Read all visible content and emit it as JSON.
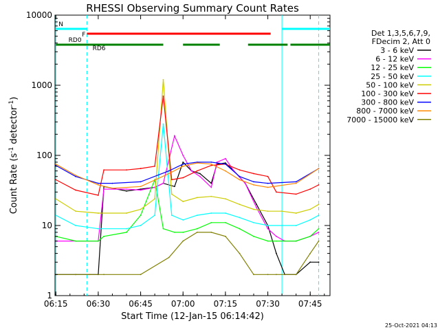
{
  "chart_data": {
    "type": "line",
    "title": "RHESSI Observing Summary Count Rates",
    "xlabel": "Start Time (12-Jan-15 06:14:42)",
    "ylabel": "Count Rate (s⁻¹ detector⁻¹)",
    "ylabel_main": "Count Rate (s",
    "ylabel_sup1": "-1",
    "ylabel_mid": " detector",
    "ylabel_sup2": "-1",
    "ylabel_end": ")",
    "y_scale": "log",
    "ylim": [
      1,
      10000
    ],
    "xlim": [
      "06:14:42",
      "07:52:00"
    ],
    "x_ticks": [
      "06:15",
      "06:30",
      "06:45",
      "07:00",
      "07:15",
      "07:30",
      "07:45"
    ],
    "y_ticks": [
      "1",
      "10",
      "100",
      "1000",
      "10000"
    ],
    "legend_header": [
      "Det 1,3,5,6,7,9,",
      "FDecim 2, Att 0"
    ],
    "legend_position": "right",
    "date_stamp": "25-Oct-2021 04:13",
    "series": [
      {
        "name": "3 - 6 keV",
        "color": "#000000",
        "x": [
          "06:15",
          "06:22",
          "06:30",
          "06:32",
          "06:40",
          "06:45",
          "06:50",
          "06:53",
          "06:57",
          "07:00",
          "07:03",
          "07:06",
          "07:10",
          "07:12",
          "07:15",
          "07:18",
          "07:22",
          "07:26",
          "07:30",
          "07:33",
          "07:36",
          "07:40",
          "07:45",
          "07:48"
        ],
        "values": [
          2,
          2,
          2,
          36,
          31,
          33,
          35,
          40,
          36,
          80,
          60,
          55,
          40,
          75,
          78,
          60,
          40,
          20,
          10,
          4,
          2,
          2,
          3,
          3
        ]
      },
      {
        "name": "6 - 12 keV",
        "color": "#ff00ff",
        "x": [
          "06:15",
          "06:22",
          "06:30",
          "06:32",
          "06:40",
          "06:45",
          "06:50",
          "06:53",
          "06:57",
          "07:00",
          "07:03",
          "07:06",
          "07:10",
          "07:12",
          "07:15",
          "07:18",
          "07:22",
          "07:26",
          "07:30",
          "07:33",
          "07:36",
          "07:40",
          "07:45",
          "07:48"
        ],
        "values": [
          6,
          6,
          6,
          33,
          33,
          32,
          35,
          40,
          190,
          100,
          60,
          50,
          35,
          80,
          90,
          60,
          40,
          18,
          9,
          7,
          6,
          6,
          7,
          8
        ]
      },
      {
        "name": "12 - 25 keV",
        "color": "#00ff00",
        "x": [
          "06:15",
          "06:22",
          "06:30",
          "06:32",
          "06:40",
          "06:45",
          "06:50",
          "06:53",
          "06:57",
          "07:00",
          "07:05",
          "07:10",
          "07:15",
          "07:20",
          "07:25",
          "07:30",
          "07:33",
          "07:40",
          "07:45",
          "07:48"
        ],
        "values": [
          7,
          6,
          6,
          7,
          8,
          14,
          45,
          9,
          8,
          8,
          9,
          11,
          11,
          9,
          7,
          6,
          6,
          6,
          7,
          9
        ]
      },
      {
        "name": "25 - 50 keV",
        "color": "#00ffff",
        "x": [
          "06:15",
          "06:22",
          "06:30",
          "06:40",
          "06:45",
          "06:50",
          "06:53",
          "06:56",
          "07:00",
          "07:05",
          "07:10",
          "07:15",
          "07:20",
          "07:25",
          "07:30",
          "07:35",
          "07:40",
          "07:45",
          "07:48"
        ],
        "values": [
          14,
          10,
          9,
          9,
          10,
          14,
          280,
          14,
          12,
          14,
          15,
          15,
          13,
          11,
          10,
          10,
          10,
          12,
          14
        ]
      },
      {
        "name": "50 - 100 keV",
        "color": "#cccc00",
        "x": [
          "06:15",
          "06:22",
          "06:30",
          "06:40",
          "06:45",
          "06:50",
          "06:53",
          "06:56",
          "07:00",
          "07:05",
          "07:10",
          "07:15",
          "07:20",
          "07:25",
          "07:30",
          "07:35",
          "07:40",
          "07:45",
          "07:48"
        ],
        "values": [
          24,
          16,
          15,
          15,
          17,
          24,
          1200,
          28,
          22,
          25,
          26,
          24,
          20,
          17,
          16,
          16,
          15,
          17,
          20
        ]
      },
      {
        "name": "100 - 300 keV",
        "color": "#ff0000",
        "x": [
          "06:15",
          "06:22",
          "06:30",
          "06:32",
          "06:40",
          "06:45",
          "06:50",
          "06:53",
          "06:56",
          "07:00",
          "07:05",
          "07:10",
          "07:15",
          "07:20",
          "07:25",
          "07:30",
          "07:33",
          "07:40",
          "07:45",
          "07:48"
        ],
        "values": [
          45,
          32,
          27,
          62,
          62,
          65,
          70,
          700,
          45,
          48,
          60,
          72,
          75,
          62,
          55,
          50,
          30,
          28,
          33,
          38
        ]
      },
      {
        "name": "300 - 800 keV",
        "color": "#0000ff",
        "x": [
          "06:15",
          "06:22",
          "06:30",
          "06:35",
          "06:45",
          "06:55",
          "07:00",
          "07:05",
          "07:10",
          "07:15",
          "07:20",
          "07:25",
          "07:30",
          "07:40",
          "07:48"
        ],
        "values": [
          72,
          50,
          40,
          40,
          42,
          60,
          75,
          80,
          80,
          75,
          50,
          42,
          40,
          42,
          65
        ]
      },
      {
        "name": "800 - 7000 keV",
        "color": "#ff8800",
        "x": [
          "06:15",
          "06:22",
          "06:30",
          "06:35",
          "06:45",
          "06:55",
          "07:00",
          "07:05",
          "07:10",
          "07:15",
          "07:20",
          "07:25",
          "07:30",
          "07:40",
          "07:48"
        ],
        "values": [
          75,
          52,
          38,
          34,
          36,
          55,
          70,
          78,
          75,
          60,
          45,
          38,
          35,
          40,
          65
        ]
      },
      {
        "name": "7000 - 15000 keV",
        "color": "#808000",
        "x": [
          "06:15",
          "06:22",
          "06:27",
          "06:32",
          "06:45",
          "06:55",
          "07:00",
          "07:05",
          "07:10",
          "07:15",
          "07:20",
          "07:25",
          "07:30",
          "07:33",
          "07:40",
          "07:45",
          "07:48"
        ],
        "values": [
          2,
          2,
          2,
          2,
          2,
          3.5,
          6,
          8,
          8,
          7,
          4,
          2,
          2,
          2,
          2,
          4,
          6
        ]
      }
    ],
    "state_bars": [
      {
        "label": "N",
        "color": "#00ffff",
        "segments": [
          [
            "06:15",
            "06:26"
          ],
          [
            "07:35",
            "07:52"
          ]
        ]
      },
      {
        "label": "F",
        "color": "#ff0000",
        "segments": [
          [
            "06:26",
            "07:31"
          ]
        ]
      },
      {
        "label": "RD0",
        "color": "#008000",
        "segments": [
          [
            "06:15",
            "06:27"
          ]
        ]
      },
      {
        "label": "RD6",
        "color": "#008000",
        "segments": [
          [
            "06:27",
            "06:53"
          ],
          [
            "07:00",
            "07:13"
          ],
          [
            "07:23",
            "07:37"
          ],
          [
            "07:38",
            "07:52"
          ]
        ]
      }
    ],
    "markers": [
      {
        "style": "solid",
        "color": "#00ffff",
        "x": "06:15"
      },
      {
        "style": "dashed",
        "color": "#00ffff",
        "x": "06:26"
      },
      {
        "style": "solid",
        "color": "#00ffff",
        "x": "07:35"
      },
      {
        "style": "dashed",
        "color": "#00ffff",
        "x": "07:48"
      }
    ]
  }
}
